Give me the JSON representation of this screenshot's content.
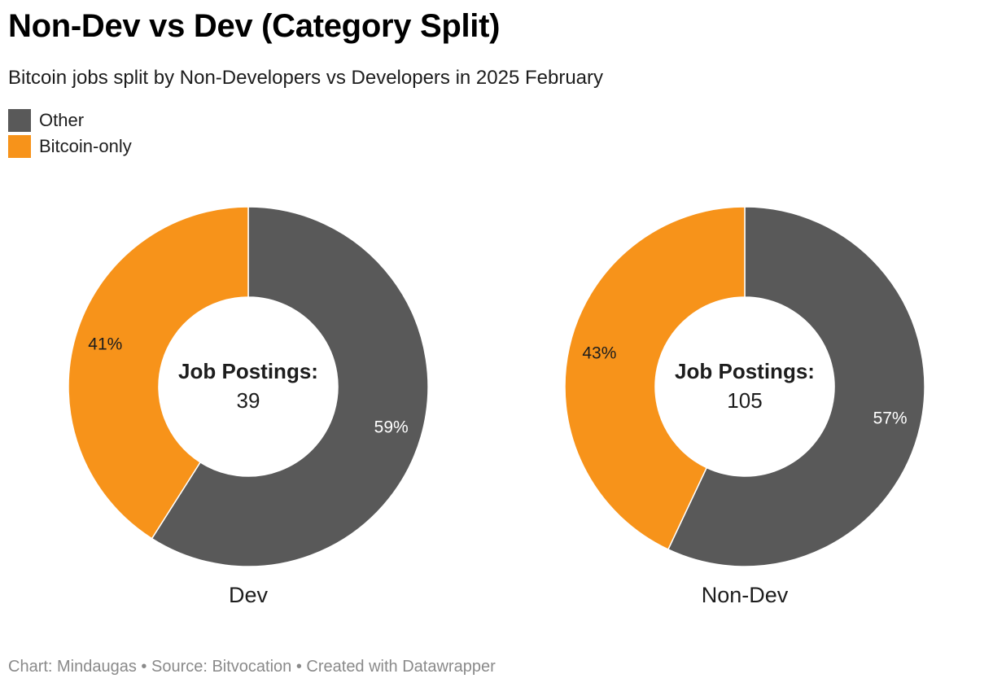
{
  "title": "Non-Dev vs Dev (Category Split)",
  "subtitle": "Bitcoin jobs split by Non-Developers vs Developers in 2025 February",
  "legend": [
    {
      "label": "Other",
      "color": "#595959"
    },
    {
      "label": "Bitcoin-only",
      "color": "#f7931a"
    }
  ],
  "chart_data": {
    "type": "pie",
    "variant": "donut",
    "legend_placement": "top-left",
    "series_names": [
      "Other",
      "Bitcoin-only"
    ],
    "colors": {
      "Other": "#595959",
      "Bitcoin-only": "#f7931a"
    },
    "center_label": "Job Postings:",
    "charts": [
      {
        "name": "Dev",
        "total": "39",
        "slices": [
          {
            "label": "Other",
            "value": 59,
            "display": "59%"
          },
          {
            "label": "Bitcoin-only",
            "value": 41,
            "display": "41%"
          }
        ]
      },
      {
        "name": "Non-Dev",
        "total": "105",
        "slices": [
          {
            "label": "Other",
            "value": 57,
            "display": "57%"
          },
          {
            "label": "Bitcoin-only",
            "value": 43,
            "display": "43%"
          }
        ]
      }
    ]
  },
  "footer": "Chart: Mindaugas • Source: Bitvocation • Created with Datawrapper"
}
